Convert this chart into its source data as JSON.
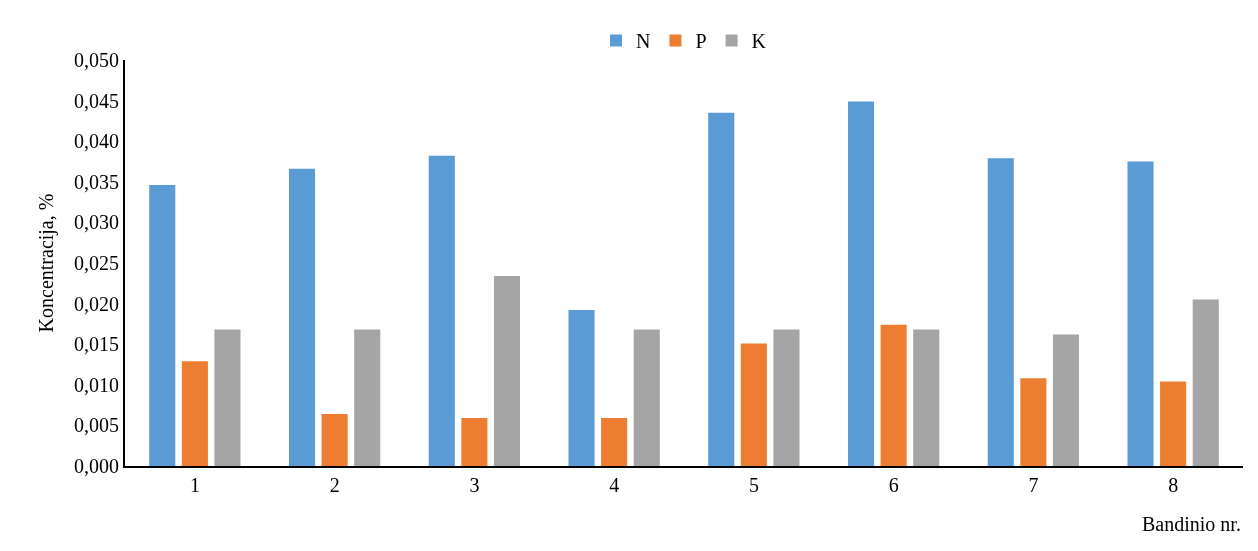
{
  "chart_data": {
    "type": "bar",
    "xlabel": "Bandinio nr.",
    "ylabel": "Koncentracija, %",
    "categories": [
      "1",
      "2",
      "3",
      "4",
      "5",
      "6",
      "7",
      "8"
    ],
    "series": [
      {
        "name": "N",
        "color": "#5b9bd5",
        "values": [
          0.0346,
          0.0366,
          0.0382,
          0.0192,
          0.0435,
          0.0449,
          0.0379,
          0.0375
        ]
      },
      {
        "name": "P",
        "color": "#ed7d31",
        "values": [
          0.0129,
          0.0064,
          0.0059,
          0.0059,
          0.0151,
          0.0174,
          0.0108,
          0.0104
        ]
      },
      {
        "name": "K",
        "color": "#a5a5a5",
        "values": [
          0.0168,
          0.0168,
          0.0234,
          0.0168,
          0.0168,
          0.0168,
          0.0162,
          0.0205
        ]
      }
    ],
    "ylim": [
      0,
      0.05
    ],
    "yticks": [
      {
        "value": 0,
        "label": "0,000"
      },
      {
        "value": 0.005,
        "label": "0,005"
      },
      {
        "value": 0.01,
        "label": "0,010"
      },
      {
        "value": 0.015,
        "label": "0,015"
      },
      {
        "value": 0.02,
        "label": "0,020"
      },
      {
        "value": 0.025,
        "label": "0,025"
      },
      {
        "value": 0.03,
        "label": "0,030"
      },
      {
        "value": 0.035,
        "label": "0,035"
      },
      {
        "value": 0.04,
        "label": "0,040"
      },
      {
        "value": 0.045,
        "label": "0,045"
      },
      {
        "value": 0.05,
        "label": "0,050"
      }
    ],
    "legend": "top"
  }
}
